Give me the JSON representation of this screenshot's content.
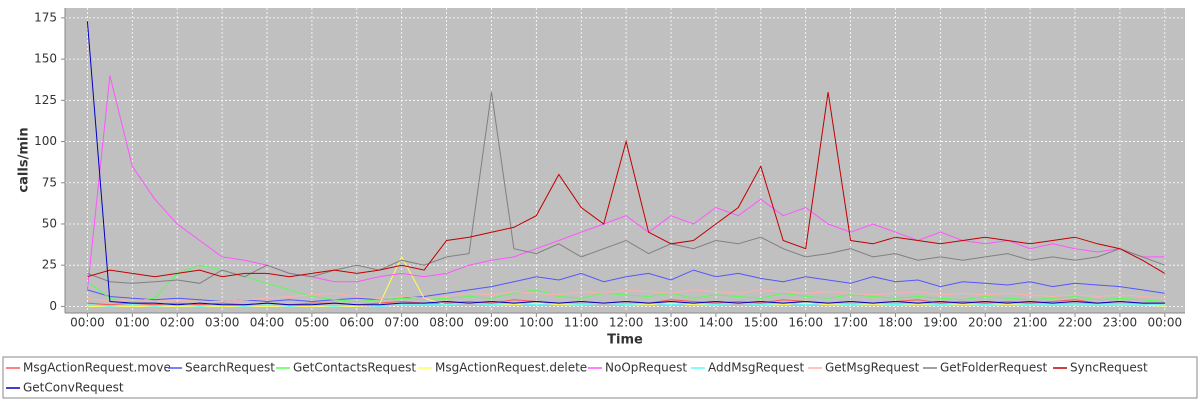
{
  "chart_data": {
    "type": "line",
    "xlabel": "Time",
    "ylabel": "calls/min",
    "xlim": [
      -0.5,
      24.45
    ],
    "ylim": [
      -4,
      181
    ],
    "xticks": [
      {
        "value": 0,
        "label": "00:00"
      },
      {
        "value": 1,
        "label": "01:00"
      },
      {
        "value": 2,
        "label": "02:00"
      },
      {
        "value": 3,
        "label": "03:00"
      },
      {
        "value": 4,
        "label": "04:00"
      },
      {
        "value": 5,
        "label": "05:00"
      },
      {
        "value": 6,
        "label": "06:00"
      },
      {
        "value": 7,
        "label": "07:00"
      },
      {
        "value": 8,
        "label": "08:00"
      },
      {
        "value": 9,
        "label": "09:00"
      },
      {
        "value": 10,
        "label": "10:00"
      },
      {
        "value": 11,
        "label": "11:00"
      },
      {
        "value": 12,
        "label": "12:00"
      },
      {
        "value": 13,
        "label": "13:00"
      },
      {
        "value": 14,
        "label": "14:00"
      },
      {
        "value": 15,
        "label": "15:00"
      },
      {
        "value": 16,
        "label": "16:00"
      },
      {
        "value": 17,
        "label": "17:00"
      },
      {
        "value": 18,
        "label": "18:00"
      },
      {
        "value": 19,
        "label": "19:00"
      },
      {
        "value": 20,
        "label": "20:00"
      },
      {
        "value": 21,
        "label": "21:00"
      },
      {
        "value": 22,
        "label": "22:00"
      },
      {
        "value": 23,
        "label": "23:00"
      },
      {
        "value": 24,
        "label": "00:00"
      }
    ],
    "yticks": [
      0,
      25,
      50,
      75,
      100,
      125,
      150,
      175
    ],
    "grid": true,
    "x": [
      0,
      0.5,
      1,
      1.5,
      2,
      2.5,
      3,
      3.5,
      4,
      4.5,
      5,
      5.5,
      6,
      6.5,
      7,
      7.5,
      8,
      8.5,
      9,
      9.5,
      10,
      10.5,
      11,
      11.5,
      12,
      12.5,
      13,
      13.5,
      14,
      14.5,
      15,
      15.5,
      16,
      16.5,
      17,
      17.5,
      18,
      18.5,
      19,
      19.5,
      20,
      20.5,
      21,
      21.5,
      22,
      22.5,
      23,
      23.5,
      24
    ],
    "series": [
      {
        "name": "MsgActionRequest.move",
        "color": "#ff5555",
        "values": [
          2,
          1,
          2,
          1,
          2,
          1,
          2,
          1,
          2,
          1,
          2,
          2,
          1,
          2,
          3,
          2,
          2,
          3,
          2,
          4,
          3,
          2,
          3,
          2,
          3,
          2,
          4,
          3,
          2,
          3,
          2,
          4,
          3,
          2,
          3,
          2,
          3,
          4,
          2,
          3,
          2,
          3,
          2,
          3,
          4,
          2,
          3,
          2,
          2
        ]
      },
      {
        "name": "SearchRequest",
        "color": "#5555ff",
        "values": [
          10,
          6,
          5,
          4,
          5,
          4,
          3,
          4,
          3,
          4,
          3,
          4,
          5,
          4,
          5,
          6,
          8,
          10,
          12,
          15,
          18,
          16,
          20,
          15,
          18,
          20,
          16,
          22,
          18,
          20,
          17,
          15,
          18,
          16,
          14,
          18,
          15,
          16,
          12,
          15,
          14,
          13,
          15,
          12,
          14,
          13,
          12,
          10,
          8
        ]
      },
      {
        "name": "GetContactsRequest",
        "color": "#55ff55",
        "values": [
          15,
          5,
          3,
          5,
          20,
          25,
          22,
          18,
          14,
          10,
          6,
          4,
          3,
          4,
          5,
          4,
          5,
          6,
          5,
          8,
          10,
          6,
          5,
          8,
          7,
          6,
          8,
          5,
          7,
          6,
          5,
          8,
          6,
          5,
          7,
          6,
          5,
          6,
          5,
          4,
          6,
          5,
          4,
          5,
          6,
          4,
          5,
          4,
          3
        ]
      },
      {
        "name": "MsgActionRequest.delete",
        "color": "#ffff55",
        "values": [
          0,
          0,
          0,
          0,
          0,
          0,
          0,
          0,
          0,
          0,
          0,
          0,
          0,
          1,
          30,
          5,
          1,
          2,
          1,
          1,
          2,
          1,
          1,
          2,
          1,
          1,
          2,
          1,
          1,
          2,
          1,
          1,
          2,
          1,
          1,
          1,
          1,
          1,
          1,
          1,
          1,
          1,
          1,
          1,
          1,
          1,
          1,
          1,
          0
        ]
      },
      {
        "name": "NoOpRequest",
        "color": "#ff55ff",
        "values": [
          10,
          140,
          85,
          65,
          50,
          40,
          30,
          28,
          25,
          20,
          18,
          15,
          15,
          18,
          20,
          18,
          20,
          25,
          28,
          30,
          35,
          40,
          45,
          50,
          55,
          45,
          55,
          50,
          60,
          55,
          65,
          55,
          60,
          50,
          45,
          50,
          45,
          40,
          45,
          40,
          38,
          40,
          35,
          38,
          35,
          33,
          35,
          30,
          30
        ]
      },
      {
        "name": "AddMsgRequest",
        "color": "#55ffff",
        "values": [
          1,
          0,
          1,
          0,
          1,
          0,
          1,
          0,
          1,
          0,
          1,
          0,
          1,
          0,
          1,
          1,
          1,
          2,
          1,
          2,
          1,
          2,
          1,
          2,
          1,
          2,
          1,
          2,
          1,
          2,
          1,
          2,
          1,
          2,
          1,
          2,
          1,
          2,
          1,
          2,
          1,
          2,
          1,
          1,
          1,
          1,
          1,
          1,
          1
        ]
      },
      {
        "name": "GetMsgRequest",
        "color": "#ffafaf",
        "values": [
          5,
          3,
          4,
          3,
          4,
          3,
          3,
          4,
          5,
          6,
          7,
          8,
          6,
          5,
          6,
          5,
          6,
          8,
          7,
          9,
          8,
          7,
          9,
          8,
          10,
          9,
          8,
          10,
          9,
          8,
          10,
          9,
          8,
          9,
          8,
          7,
          8,
          9,
          7,
          8,
          7,
          8,
          7,
          6,
          7,
          6,
          7,
          6,
          5
        ]
      },
      {
        "name": "GetFolderRequest",
        "color": "#808080",
        "values": [
          20,
          15,
          14,
          15,
          16,
          14,
          22,
          18,
          25,
          20,
          18,
          22,
          25,
          22,
          28,
          25,
          30,
          32,
          130,
          35,
          32,
          38,
          30,
          35,
          40,
          32,
          38,
          35,
          40,
          38,
          42,
          35,
          30,
          32,
          35,
          30,
          32,
          28,
          30,
          28,
          30,
          32,
          28,
          30,
          28,
          30,
          35,
          30,
          25
        ]
      },
      {
        "name": "SyncRequest",
        "color": "#c00000",
        "values": [
          18,
          22,
          20,
          18,
          20,
          22,
          18,
          20,
          20,
          18,
          20,
          22,
          20,
          22,
          25,
          22,
          40,
          42,
          45,
          48,
          55,
          80,
          60,
          50,
          100,
          45,
          38,
          40,
          50,
          60,
          85,
          40,
          35,
          130,
          40,
          38,
          42,
          40,
          38,
          40,
          42,
          40,
          38,
          40,
          42,
          38,
          35,
          28,
          20
        ]
      },
      {
        "name": "GetConvRequest",
        "color": "#0000c0",
        "values": [
          173,
          3,
          2,
          2,
          1,
          2,
          1,
          1,
          2,
          1,
          1,
          2,
          1,
          1,
          2,
          2,
          3,
          2,
          3,
          2,
          3,
          2,
          3,
          2,
          3,
          2,
          3,
          2,
          3,
          2,
          3,
          2,
          3,
          2,
          3,
          2,
          3,
          2,
          3,
          2,
          3,
          2,
          3,
          2,
          3,
          2,
          3,
          2,
          2
        ]
      }
    ]
  }
}
